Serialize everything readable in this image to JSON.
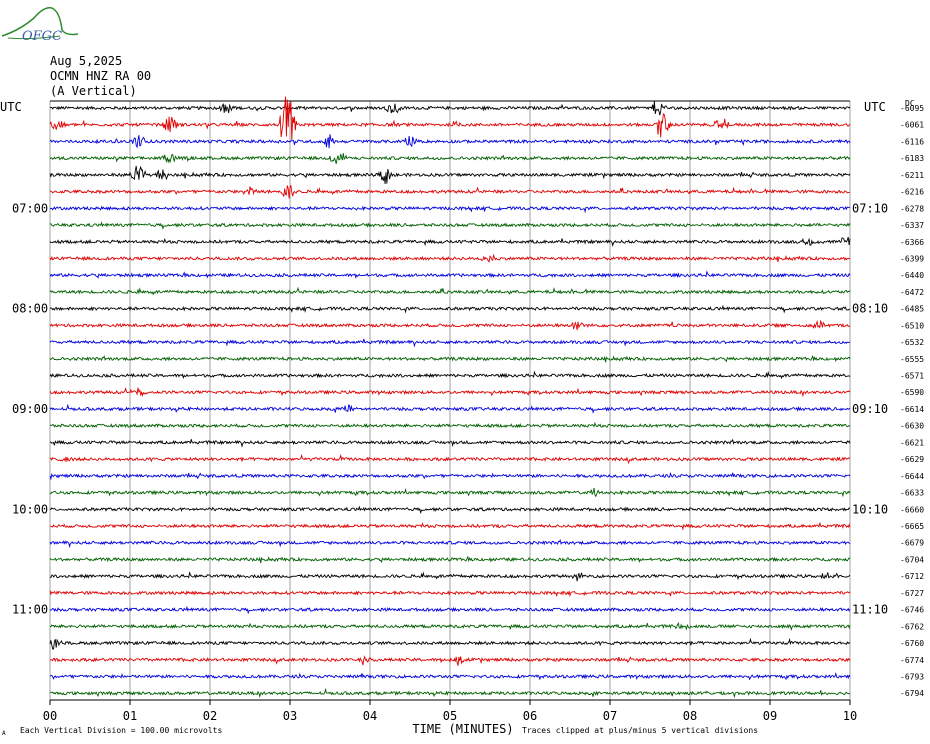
{
  "header": {
    "logo_text": "OFGC",
    "date": "Aug 5,2025",
    "station": "OCMN HNZ RA 00",
    "component": "(A Vertical)"
  },
  "chart_data": {
    "type": "line",
    "title": "",
    "xlabel": "TIME (MINUTES)",
    "ylabel": "",
    "xlim": [
      0,
      10
    ],
    "x_ticks": [
      "00",
      "01",
      "02",
      "03",
      "04",
      "05",
      "06",
      "07",
      "08",
      "09",
      "10"
    ],
    "left_axis_label": "UTC",
    "right_axis_label": "UTC",
    "offset_column_label": "DC",
    "left_hour_labels": [
      {
        "row": 6,
        "text": "07:00"
      },
      {
        "row": 12,
        "text": "08:00"
      },
      {
        "row": 18,
        "text": "09:00"
      },
      {
        "row": 24,
        "text": "10:00"
      },
      {
        "row": 30,
        "text": "11:00"
      }
    ],
    "right_hour_labels": [
      {
        "row": 6,
        "text": "07:10"
      },
      {
        "row": 12,
        "text": "08:10"
      },
      {
        "row": 18,
        "text": "09:10"
      },
      {
        "row": 24,
        "text": "10:10"
      },
      {
        "row": 30,
        "text": "11:10"
      }
    ],
    "trace_colors": [
      "#000000",
      "#e00000",
      "#0000e0",
      "#006000"
    ],
    "dc_offsets": [
      "-6095",
      "-6061",
      "-6116",
      "-6183",
      "-6211",
      "-6216",
      "-6278",
      "-6337",
      "-6366",
      "-6399",
      "-6440",
      "-6472",
      "-6485",
      "-6510",
      "-6532",
      "-6555",
      "-6571",
      "-6590",
      "-6614",
      "-6630",
      "-6621",
      "-6629",
      "-6644",
      "-6633",
      "-6660",
      "-6665",
      "-6679",
      "-6704",
      "-6712",
      "-6727",
      "-6746",
      "-6762",
      "-6760",
      "-6774",
      "-6793",
      "-6794"
    ],
    "events": [
      {
        "row": 0,
        "minute": 2.2,
        "amp": 1.0
      },
      {
        "row": 0,
        "minute": 4.3,
        "amp": 0.9
      },
      {
        "row": 0,
        "minute": 7.6,
        "amp": 1.1
      },
      {
        "row": 1,
        "minute": 0.1,
        "amp": 0.9
      },
      {
        "row": 1,
        "minute": 1.5,
        "amp": 1.4
      },
      {
        "row": 1,
        "minute": 2.97,
        "amp": 4.5
      },
      {
        "row": 1,
        "minute": 7.65,
        "amp": 2.5
      },
      {
        "row": 1,
        "minute": 8.4,
        "amp": 0.9
      },
      {
        "row": 2,
        "minute": 1.1,
        "amp": 0.9
      },
      {
        "row": 2,
        "minute": 3.5,
        "amp": 1.0
      },
      {
        "row": 2,
        "minute": 4.5,
        "amp": 0.8
      },
      {
        "row": 3,
        "minute": 1.5,
        "amp": 0.8
      },
      {
        "row": 3,
        "minute": 3.6,
        "amp": 1.2
      },
      {
        "row": 4,
        "minute": 1.1,
        "amp": 1.4
      },
      {
        "row": 4,
        "minute": 1.4,
        "amp": 0.9
      },
      {
        "row": 4,
        "minute": 4.2,
        "amp": 1.1
      },
      {
        "row": 5,
        "minute": 2.97,
        "amp": 1.2
      },
      {
        "row": 5,
        "minute": 2.5,
        "amp": 0.6
      },
      {
        "row": 8,
        "minute": 9.5,
        "amp": 0.6
      },
      {
        "row": 8,
        "minute": 9.95,
        "amp": 0.7
      },
      {
        "row": 9,
        "minute": 5.5,
        "amp": 0.5
      },
      {
        "row": 13,
        "minute": 6.6,
        "amp": 0.7
      },
      {
        "row": 13,
        "minute": 9.6,
        "amp": 0.6
      },
      {
        "row": 17,
        "minute": 1.1,
        "amp": 0.5
      },
      {
        "row": 18,
        "minute": 3.7,
        "amp": 0.6
      },
      {
        "row": 21,
        "minute": 0.2,
        "amp": 0.5
      },
      {
        "row": 23,
        "minute": 6.8,
        "amp": 0.5
      },
      {
        "row": 28,
        "minute": 6.6,
        "amp": 0.5
      },
      {
        "row": 28,
        "minute": 9.7,
        "amp": 0.5
      },
      {
        "row": 31,
        "minute": 7.9,
        "amp": 0.6
      },
      {
        "row": 32,
        "minute": 0.05,
        "amp": 0.8
      },
      {
        "row": 33,
        "minute": 3.9,
        "amp": 0.6
      },
      {
        "row": 33,
        "minute": 5.1,
        "amp": 0.6
      }
    ],
    "noise_level": 0.18
  },
  "footer": {
    "scale_note": "Each Vertical Division =  100.00 microvolts",
    "clip_note": "Traces clipped at plus/minus 5 vertical divisions",
    "corner_mark": "A"
  }
}
